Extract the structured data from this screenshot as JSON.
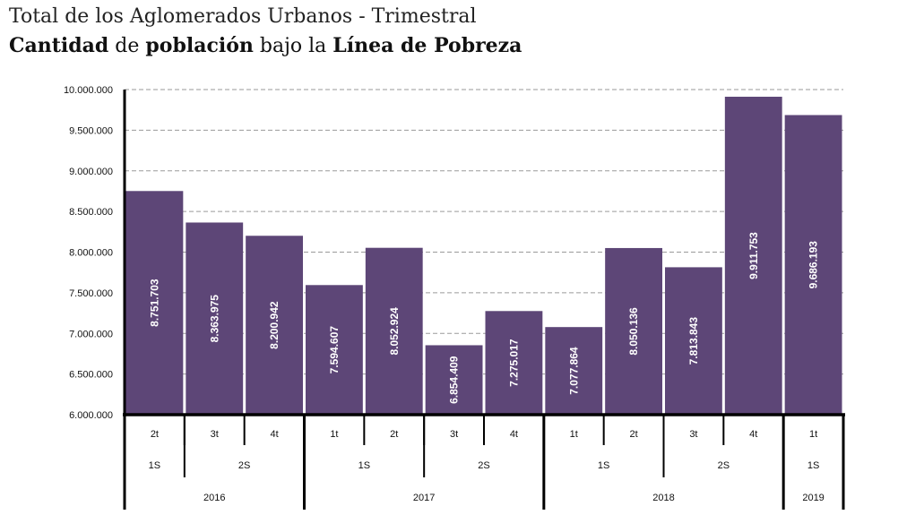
{
  "title": "Total de los Aglomerados Urbanos - Trimestral",
  "subtitle_parts": [
    {
      "text": "Cantidad",
      "bold": true
    },
    {
      "text": " de ",
      "bold": false
    },
    {
      "text": "población",
      "bold": true
    },
    {
      "text": " bajo la ",
      "bold": false
    },
    {
      "text": "Línea de Pobreza",
      "bold": true
    }
  ],
  "colors": {
    "bar": "#5d4677",
    "grid": "#9a9a9a",
    "axis": "#000000",
    "bar_label": "#ffffff"
  },
  "chart_data": {
    "type": "bar",
    "title": "Total de los Aglomerados Urbanos - Trimestral",
    "subtitle": "Cantidad de población bajo la Línea de Pobreza",
    "ylim": [
      6000000,
      10000000
    ],
    "yticks": [
      6000000,
      6500000,
      7000000,
      7500000,
      8000000,
      8500000,
      9000000,
      9500000,
      10000000
    ],
    "ytick_labels": [
      "6.000.000",
      "6.500.000",
      "7.000.000",
      "7.500.000",
      "8.000.000",
      "8.500.000",
      "9.000.000",
      "9.500.000",
      "10.000.000"
    ],
    "grid": true,
    "categories": [
      "2t",
      "3t",
      "4t",
      "1t",
      "2t",
      "3t",
      "4t",
      "1t",
      "2t",
      "3t",
      "4t",
      "1t"
    ],
    "values": [
      8751703,
      8363975,
      8200942,
      7594607,
      8052924,
      6854409,
      7275017,
      7077864,
      8050136,
      7813843,
      9911753,
      9686193
    ],
    "value_labels": [
      "8.751.703",
      "8.363.975",
      "8.200.942",
      "7.594.607",
      "8.052.924",
      "6.854.409",
      "7.275.017",
      "7.077.864",
      "8.050.136",
      "7.813.843",
      "9.911.753",
      "9.686.193"
    ],
    "semesters": [
      {
        "label": "1S",
        "start": 0,
        "count": 1
      },
      {
        "label": "2S",
        "start": 1,
        "count": 2
      },
      {
        "label": "1S",
        "start": 3,
        "count": 2
      },
      {
        "label": "2S",
        "start": 5,
        "count": 2
      },
      {
        "label": "1S",
        "start": 7,
        "count": 2
      },
      {
        "label": "2S",
        "start": 9,
        "count": 2
      },
      {
        "label": "1S",
        "start": 11,
        "count": 1
      }
    ],
    "years": [
      {
        "label": "2016",
        "start": 0,
        "count": 3
      },
      {
        "label": "2017",
        "start": 3,
        "count": 4
      },
      {
        "label": "2018",
        "start": 7,
        "count": 4
      },
      {
        "label": "2019",
        "start": 11,
        "count": 1
      }
    ]
  }
}
